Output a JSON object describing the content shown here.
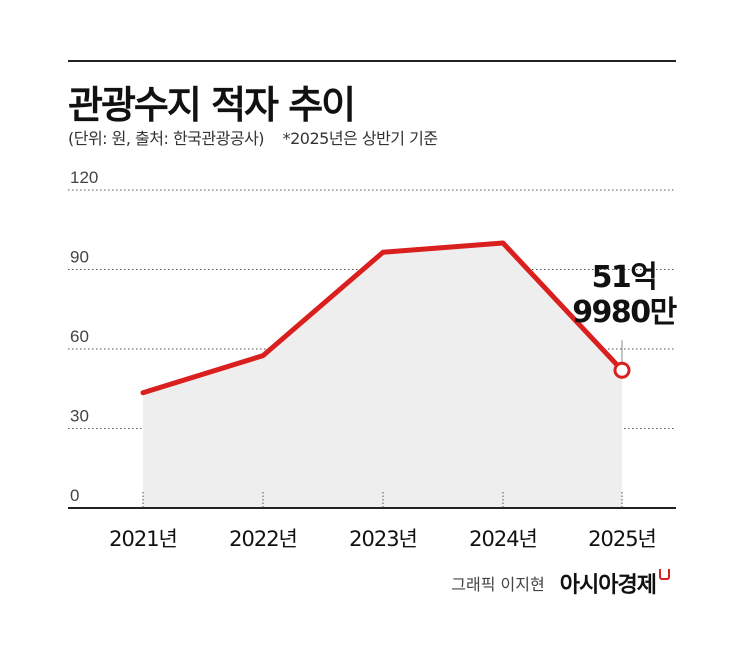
{
  "header": {
    "title": "관광수지 적자 추이",
    "subtitle": "(단위: 원, 출처: 한국관광공사)",
    "note": "*2025년은 상반기 기준"
  },
  "chart_data": {
    "type": "area",
    "categories": [
      "2021년",
      "2022년",
      "2023년",
      "2024년",
      "2025년"
    ],
    "values": [
      43.5,
      57.5,
      96.5,
      100,
      52
    ],
    "yticks": [
      "0",
      "30",
      "60",
      "90",
      "120"
    ],
    "ylim": [
      0,
      120
    ],
    "grid": true,
    "annotation": {
      "category": "2025년",
      "line1": "51억",
      "line2": "9980만"
    },
    "colors": {
      "line": "#d9201f",
      "fill": "#eeeeee",
      "grid": "#555555",
      "axis": "#222222"
    }
  },
  "footer": {
    "credit": "그래픽 이지현",
    "brand": "아시아경제"
  }
}
